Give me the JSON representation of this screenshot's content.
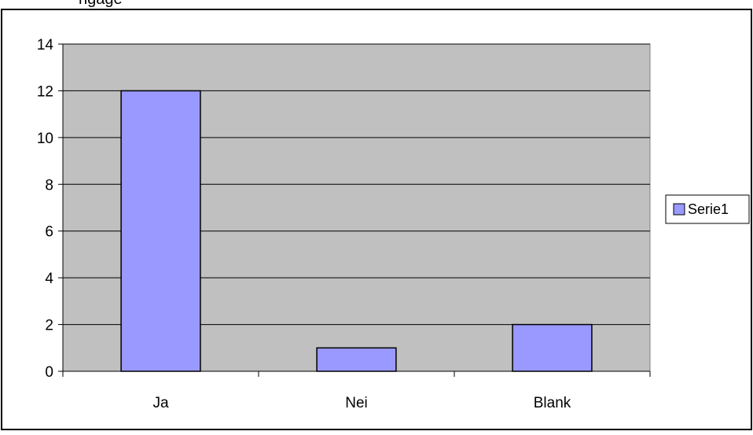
{
  "page": {
    "clipped_top_text": "ngage"
  },
  "chart_data": {
    "type": "bar",
    "categories": [
      "Ja",
      "Nei",
      "Blank"
    ],
    "series": [
      {
        "name": "Serie1",
        "values": [
          12,
          1,
          2
        ]
      }
    ],
    "title": "",
    "xlabel": "",
    "ylabel": "",
    "ylim": [
      0,
      14
    ],
    "yticks": [
      "0",
      "2",
      "4",
      "6",
      "8",
      "10",
      "12",
      "14"
    ],
    "grid": true,
    "legend": "right",
    "colors": {
      "bar_fill": "#9999ff",
      "plot_background": "#c0c0c0",
      "gridline": "#000000",
      "border": "#000000"
    }
  }
}
